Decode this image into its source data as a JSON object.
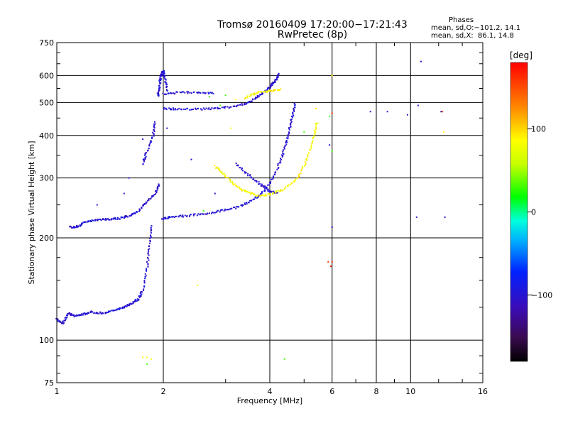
{
  "header": {
    "title": "Tromsø 20160409 17:20:00−17:21:43",
    "subtitle": "RwPretec (8p)"
  },
  "phases_box": {
    "title": "Phases",
    "line_o": "mean, sd,O:−101.2, 14.1",
    "line_x": "mean, sd,X:  86.1, 14.8"
  },
  "colorbar": {
    "label": "[deg]",
    "ticks": [
      "100",
      "0",
      "−100"
    ],
    "tick_values": [
      100,
      0,
      -100
    ],
    "range": [
      -180,
      180
    ]
  },
  "colors": {
    "grid": "#000000",
    "o_mode": "#1f2fd0",
    "x_mode": "#e6e61a"
  },
  "chart_data": {
    "type": "scatter",
    "title": "Tromsø 20160409 17:20:00−17:21:43",
    "subtitle": "RwPretec (8p)",
    "xlabel": "Frequency [MHz]",
    "ylabel": "Stationary phase Virtual Height [km]",
    "x_scale": "log",
    "y_scale": "log",
    "xlim": [
      1,
      16
    ],
    "ylim": [
      75,
      750
    ],
    "x_ticks": [
      1,
      2,
      4,
      6,
      8,
      10,
      16
    ],
    "x_tick_labels": [
      "1",
      "2",
      "4",
      "6",
      "8",
      "10",
      "16"
    ],
    "y_ticks": [
      75,
      100,
      200,
      300,
      400,
      500,
      600,
      750
    ],
    "y_tick_labels": [
      "75",
      "100",
      "200",
      "300",
      "400",
      "500",
      "600",
      "750"
    ],
    "grid": true,
    "series": [
      {
        "mode": "O",
        "phase_deg": -100,
        "segments": [
          [
            [
              1.0,
              115
            ],
            [
              1.04,
              112
            ],
            [
              1.08,
              120
            ],
            [
              1.12,
              118
            ],
            [
              1.18,
              119
            ],
            [
              1.25,
              121
            ],
            [
              1.35,
              120
            ],
            [
              1.45,
              122
            ],
            [
              1.55,
              125
            ],
            [
              1.62,
              128
            ],
            [
              1.7,
              132
            ],
            [
              1.75,
              140
            ],
            [
              1.8,
              165
            ],
            [
              1.83,
              190
            ],
            [
              1.86,
              220
            ]
          ],
          [
            [
              1.09,
              215
            ],
            [
              1.15,
              216
            ],
            [
              1.2,
              222
            ],
            [
              1.3,
              226
            ],
            [
              1.4,
              227
            ],
            [
              1.5,
              228
            ],
            [
              1.6,
              232
            ],
            [
              1.7,
              240
            ],
            [
              1.8,
              255
            ],
            [
              1.9,
              270
            ],
            [
              1.95,
              290
            ]
          ],
          [
            [
              1.75,
              330
            ],
            [
              1.8,
              360
            ],
            [
              1.87,
              400
            ],
            [
              1.9,
              440
            ]
          ],
          [
            [
              1.98,
              228
            ],
            [
              2.1,
              230
            ],
            [
              2.3,
              232
            ],
            [
              2.6,
              235
            ],
            [
              2.9,
              240
            ],
            [
              3.2,
              245
            ],
            [
              3.5,
              255
            ],
            [
              3.8,
              270
            ],
            [
              4.1,
              300
            ],
            [
              4.3,
              340
            ],
            [
              4.45,
              380
            ],
            [
              4.55,
              420
            ],
            [
              4.65,
              460
            ],
            [
              4.72,
              500
            ]
          ],
          [
            [
              2.0,
              480
            ],
            [
              2.2,
              478
            ],
            [
              2.5,
              478
            ],
            [
              2.8,
              480
            ],
            [
              3.1,
              485
            ],
            [
              3.4,
              495
            ],
            [
              3.6,
              510
            ],
            [
              3.8,
              530
            ],
            [
              4.0,
              555
            ],
            [
              4.15,
              580
            ],
            [
              4.25,
              610
            ]
          ],
          [
            [
              2.0,
              530
            ],
            [
              2.2,
              535
            ],
            [
              2.5,
              535
            ],
            [
              2.8,
              532
            ]
          ],
          [
            [
              3.2,
              330
            ],
            [
              3.5,
              305
            ],
            [
              3.8,
              285
            ],
            [
              4.0,
              275
            ],
            [
              4.2,
              270
            ]
          ],
          [
            [
              1.93,
              520
            ],
            [
              1.95,
              560
            ],
            [
              1.97,
              600
            ],
            [
              2.0,
              620
            ],
            [
              2.03,
              580
            ],
            [
              2.06,
              540
            ]
          ]
        ],
        "points": [
          [
            1.3,
            250
          ],
          [
            1.55,
            270
          ],
          [
            1.6,
            300
          ],
          [
            1.75,
            390
          ],
          [
            2.05,
            420
          ],
          [
            2.4,
            340
          ],
          [
            2.8,
            270
          ],
          [
            5.9,
            375
          ],
          [
            6.0,
            215
          ],
          [
            7.7,
            470
          ],
          [
            8.6,
            470
          ],
          [
            9.8,
            460
          ],
          [
            10.4,
            230
          ],
          [
            12.5,
            230
          ],
          [
            10.5,
            490
          ],
          [
            12.2,
            470
          ],
          [
            10.7,
            660
          ]
        ]
      },
      {
        "mode": "X",
        "phase_deg": 86,
        "segments": [
          [
            [
              2.8,
              325
            ],
            [
              3.0,
              305
            ],
            [
              3.2,
              285
            ],
            [
              3.45,
              272
            ],
            [
              3.7,
              266
            ],
            [
              4.0,
              268
            ],
            [
              4.4,
              278
            ],
            [
              4.8,
              300
            ],
            [
              5.1,
              340
            ],
            [
              5.3,
              390
            ],
            [
              5.45,
              440
            ]
          ],
          [
            [
              3.4,
              515
            ],
            [
              3.7,
              535
            ],
            [
              4.0,
              540
            ],
            [
              4.3,
              545
            ]
          ]
        ],
        "points": [
          [
            2.5,
            145
          ],
          [
            1.75,
            89
          ],
          [
            1.8,
            89
          ],
          [
            1.85,
            88
          ],
          [
            5.4,
            480
          ],
          [
            6.0,
            600
          ],
          [
            12.4,
            410
          ],
          [
            3.1,
            420
          ],
          [
            3.2,
            510
          ]
        ]
      },
      {
        "mode": "other",
        "phase_deg": 30,
        "points": [
          [
            2.7,
            520
          ],
          [
            3.0,
            525
          ],
          [
            2.6,
            240
          ],
          [
            2.9,
            490
          ],
          [
            5.9,
            455
          ],
          [
            6.0,
            360
          ],
          [
            4.4,
            88
          ],
          [
            5.0,
            410
          ],
          [
            1.8,
            85
          ]
        ]
      },
      {
        "mode": "other",
        "phase_deg": 160,
        "points": [
          [
            5.95,
            165
          ],
          [
            6.0,
            170
          ],
          [
            6.0,
            465
          ],
          [
            5.85,
            170
          ],
          [
            12.3,
            470
          ]
        ]
      }
    ]
  }
}
